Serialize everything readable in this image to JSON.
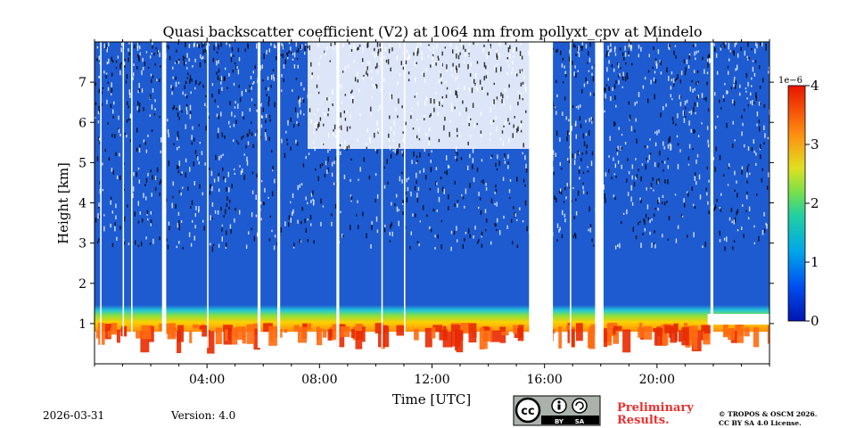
{
  "chart_data": {
    "type": "heatmap",
    "title": "Quasi backscatter coefficient (V2) at 1064 nm from pollyxt_cpv at Mindelo",
    "xlabel": "Time [UTC]",
    "ylabel": "Height [km]",
    "x_ticks": [
      "04:00",
      "08:00",
      "12:00",
      "16:00",
      "20:00"
    ],
    "x_tick_hours": [
      4,
      8,
      12,
      16,
      20
    ],
    "xlim_hours": [
      0,
      24
    ],
    "y_ticks": [
      "1",
      "2",
      "3",
      "4",
      "5",
      "6",
      "7"
    ],
    "y_tick_values": [
      1,
      2,
      3,
      4,
      5,
      6,
      7
    ],
    "ylim_km": [
      0,
      8
    ],
    "colorbar": {
      "ticks": [
        "0",
        "1",
        "2",
        "3",
        "4"
      ],
      "tick_values": [
        0,
        1,
        2,
        3,
        4
      ],
      "range": [
        0,
        4
      ],
      "scale_label": "1e−6",
      "colormap": "jet"
    },
    "gap_hours": [
      [
        0.2,
        0.25
      ],
      [
        1.0,
        1.05
      ],
      [
        1.3,
        1.35
      ],
      [
        2.4,
        2.55
      ],
      [
        4.0,
        4.05
      ],
      [
        5.8,
        5.9
      ],
      [
        6.5,
        6.6
      ],
      [
        8.6,
        8.7
      ],
      [
        10.2,
        10.25
      ],
      [
        11.0,
        11.05
      ],
      [
        15.45,
        16.3
      ],
      [
        16.9,
        16.95
      ],
      [
        17.8,
        18.1
      ],
      [
        21.9,
        22.0
      ]
    ]
  },
  "footer": {
    "date": "2026-03-31",
    "version": "Version: 4.0",
    "preliminary_line1": "Preliminary",
    "preliminary_line2": "Results.",
    "copyright_line1": "© TROPOS & OSCM 2026.",
    "copyright_line2": "CC BY SA 4.0 License.",
    "license_badge": {
      "cc": "cc",
      "by": "BY",
      "sa": "SA"
    }
  },
  "colors": {
    "preliminary": "#e8322f",
    "base_blue": "#1e5bd0"
  }
}
